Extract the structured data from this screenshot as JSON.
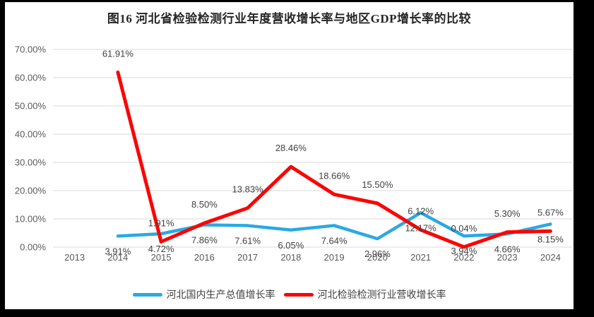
{
  "frame": {
    "background_color": "#000000",
    "card_background_color": "#ffffff"
  },
  "chart_data": {
    "type": "line",
    "title": "图16 河北省检验检测行业年度营收增长率与地区GDP增长率的比较",
    "categories": [
      "2013",
      "2014",
      "2015",
      "2016",
      "2017",
      "2018",
      "2019",
      "2020",
      "2021",
      "2022",
      "2023",
      "2024"
    ],
    "series": [
      {
        "name": "河北国内生产总值增长率",
        "color": "#2BA9E2",
        "stroke_width": 4.5,
        "label_position": "below",
        "values": [
          null,
          3.91,
          4.72,
          7.86,
          7.61,
          6.05,
          7.64,
          2.96,
          12.17,
          3.94,
          4.66,
          8.15
        ],
        "labels": [
          null,
          "3.91%",
          "4.72%",
          "7.86%",
          "7.61%",
          "6.05%",
          "7.64%",
          "2.96%",
          "12.17%",
          "3.94%",
          "4.66%",
          "8.15%"
        ]
      },
      {
        "name": "河北检验检测行业营收增长率",
        "color": "#FB0505",
        "stroke_width": 5,
        "label_position": "above",
        "values": [
          null,
          61.91,
          1.91,
          8.5,
          13.83,
          28.46,
          18.66,
          15.5,
          6.12,
          0.04,
          5.3,
          5.67
        ],
        "labels": [
          null,
          "61.91%",
          "1.91%",
          "8.50%",
          "13.83%",
          "28.46%",
          "18.66%",
          "15.50%",
          "6.12%",
          "0.04%",
          "5.30%",
          "5.67%"
        ]
      }
    ],
    "ylim": [
      0,
      70
    ],
    "ytick_step": 10,
    "y_tick_labels": [
      "0.00%",
      "10.00%",
      "20.00%",
      "30.00%",
      "40.00%",
      "50.00%",
      "60.00%",
      "70.00%"
    ],
    "grid": true,
    "legend_position": "bottom",
    "colors": {
      "gridline": "#d9d9d9",
      "axis_text": "#595959",
      "data_label_text": "#3f3f3f",
      "title_text": "#262626"
    }
  }
}
